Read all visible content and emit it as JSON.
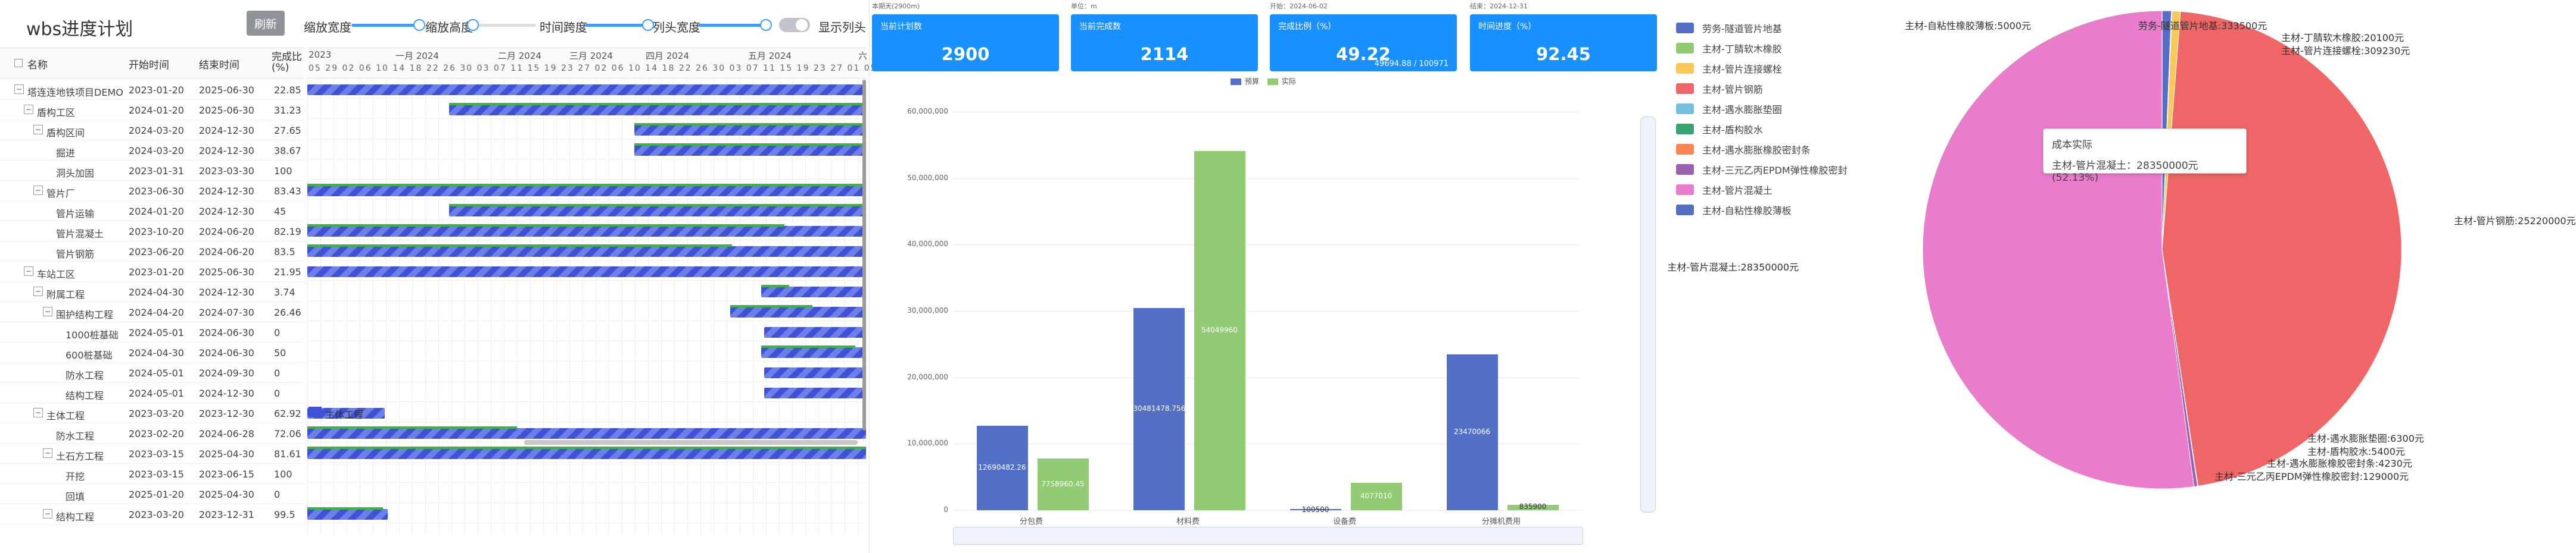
{
  "wbs": {
    "title": "wbs进度计划",
    "refresh_label": "刷新",
    "controls": [
      "缩放宽度",
      "缩放高度",
      "时间跨度",
      "列头宽度",
      "显示列头"
    ],
    "columns": [
      "名称",
      "开始时间",
      "结束时间",
      "完成比(%)"
    ],
    "rows": [
      {
        "name": "塔连连地铁项目DEMO",
        "start": "2023-01-20",
        "end": "2025-06-30",
        "pct": "22.85"
      },
      {
        "name": "盾构工区",
        "start": "2024-01-20",
        "end": "2025-06-30",
        "pct": "31.23"
      },
      {
        "name": "盾构区间",
        "start": "2024-03-20",
        "end": "2024-12-30",
        "pct": "27.65"
      },
      {
        "name": "掘进",
        "start": "2024-03-20",
        "end": "2024-12-30",
        "pct": "38.67"
      },
      {
        "name": "洞头加固",
        "start": "2023-01-31",
        "end": "2023-03-30",
        "pct": "100"
      },
      {
        "name": "管片厂",
        "start": "2023-06-30",
        "end": "2024-12-30",
        "pct": "83.43"
      },
      {
        "name": "管片运输",
        "start": "2024-01-20",
        "end": "2024-12-30",
        "pct": "45"
      },
      {
        "name": "管片混凝土",
        "start": "2023-10-20",
        "end": "2024-06-20",
        "pct": "82.19"
      },
      {
        "name": "管片钢筋",
        "start": "2023-06-20",
        "end": "2024-06-20",
        "pct": "83.5"
      },
      {
        "name": "车站工区",
        "start": "2023-01-20",
        "end": "2025-06-30",
        "pct": "21.95"
      },
      {
        "name": "附属工程",
        "start": "2024-04-30",
        "end": "2024-12-30",
        "pct": "3.74"
      },
      {
        "name": "围护结构工程",
        "start": "2024-04-20",
        "end": "2024-07-30",
        "pct": "26.46"
      },
      {
        "name": "1000桩基础",
        "start": "2024-05-01",
        "end": "2024-06-30",
        "pct": "0"
      },
      {
        "name": "600桩基础",
        "start": "2024-04-30",
        "end": "2024-06-30",
        "pct": "50"
      },
      {
        "name": "防水工程",
        "start": "2024-05-01",
        "end": "2024-09-30",
        "pct": "0"
      },
      {
        "name": "结构工程",
        "start": "2024-05-01",
        "end": "2024-12-30",
        "pct": "0"
      },
      {
        "name": "主体工程",
        "start": "2023-03-20",
        "end": "2023-12-30",
        "pct": "62.92"
      },
      {
        "name": "防水工程",
        "start": "2023-02-20",
        "end": "2024-06-28",
        "pct": "72.06"
      },
      {
        "name": "土石方工程",
        "start": "2023-03-15",
        "end": "2025-04-30",
        "pct": "81.61"
      },
      {
        "name": "开挖",
        "start": "2023-03-15",
        "end": "2023-06-15",
        "pct": "100"
      },
      {
        "name": "回填",
        "start": "2025-01-20",
        "end": "2025-04-30",
        "pct": "0"
      },
      {
        "name": "结构工程",
        "start": "2023-03-20",
        "end": "2023-12-31",
        "pct": "99.5"
      }
    ],
    "gantt_header": {
      "months": [
        "2023",
        "一月 2024",
        "二月 2024",
        "三月 2024",
        "四月 2024",
        "五月 2024",
        "六"
      ],
      "days": "05 29 02 06 10 14 18 22 26 30 03 07 11 15 19 23 27 02 06 10 14 18 22 26 30 03 07 11 15 19 23 27 01 05 09 13 17 21 25 29 02",
      "bar_label": "主体工程"
    }
  },
  "kpis": [
    {
      "meta": "本期天(2900m)",
      "label": "当前计划数",
      "value": "2900",
      "sub": ""
    },
    {
      "meta": "单位：m",
      "label": "当前完成数",
      "value": "2114",
      "sub": ""
    },
    {
      "meta": "开始：2024-06-02",
      "label": "完成比例（%）",
      "value": "49.22",
      "sub": "49694.88 / 100971"
    },
    {
      "meta": "结束：2024-12-31",
      "label": "时间进度（%）",
      "value": "92.45",
      "sub": ""
    }
  ],
  "colors": {
    "kpi": "#1890ff",
    "plan": "#5470c6",
    "actual": "#91cc75"
  },
  "chart_data": [
    {
      "type": "bar",
      "legend": [
        "预算",
        "实际"
      ],
      "categories": [
        "分包费",
        "材料费",
        "设备费",
        "分摊机费用"
      ],
      "ylim": [
        0,
        60000000
      ],
      "yticks": [
        "0",
        "10,000,000",
        "20,000,000",
        "30,000,000",
        "40,000,000",
        "50,000,000",
        "60,000,000"
      ],
      "series": [
        {
          "name": "预算",
          "values": [
            12690482.26,
            30481478.7568,
            100500,
            23470066
          ],
          "labels": [
            "12690482.26",
            "30481478.7568",
            "100500",
            "23470066"
          ]
        },
        {
          "name": "实际",
          "values": [
            7758960.45,
            54049960,
            4077010,
            835900
          ],
          "labels": [
            "7758960.45",
            "54049960",
            "4077010",
            "835900"
          ]
        }
      ]
    },
    {
      "type": "pie",
      "legend": [
        "劳务-隧道管片地基",
        "主材-丁腈软木橡胶",
        "主材-管片连接螺栓",
        "主材-管片钢筋",
        "主材-遇水膨胀垫圈",
        "主材-盾构胶水",
        "主材-遇水膨胀橡胶密封条",
        "主材-三元乙丙EPDM弹性橡胶密封",
        "主材-管片混凝土",
        "主材-自粘性橡胶薄板"
      ],
      "slices": [
        {
          "name": "主材-自粘性橡胶薄板",
          "value": 5000,
          "color": "#5470c6"
        },
        {
          "name": "劳务-隧道管片地基",
          "value": 333500,
          "color": "#5470c6"
        },
        {
          "name": "主材-丁腈软木橡胶",
          "value": 20100,
          "color": "#91cc75"
        },
        {
          "name": "主材-管片连接螺栓",
          "value": 309230,
          "color": "#fac858"
        },
        {
          "name": "主材-管片钢筋",
          "value": 25220000,
          "color": "#ee6666"
        },
        {
          "name": "主材-遇水膨胀垫圈",
          "value": 6300,
          "color": "#73c0de"
        },
        {
          "name": "主材-盾构胶水",
          "value": 5400,
          "color": "#3ba272"
        },
        {
          "name": "主材-遇水膨胀橡胶密封条",
          "value": 4230,
          "color": "#fc8452"
        },
        {
          "name": "主材-三元乙丙EPDM弹性橡胶密封",
          "value": 129000,
          "color": "#9a60b4"
        },
        {
          "name": "主材-管片混凝土",
          "value": 28350000,
          "color": "#ea7ccc"
        }
      ],
      "slice_labels": [
        "主材-自粘性橡胶薄板:5000元",
        "劳务-隧道管片地基:333500元",
        "主材-丁腈软木橡胶:20100元",
        "主材-管片连接螺栓:309230元",
        "主材-管片钢筋:25220000元",
        "主材-遇水膨胀垫圈:6300元",
        "主材-盾构胶水:5400元",
        "主材-遇水膨胀橡胶密封条:4230元",
        "主材-三元乙丙EPDM弹性橡胶密封:129000元",
        "主材-管片混凝土:28350000元"
      ],
      "tooltip": {
        "title": "成本实际",
        "body": "主材-管片混凝土：28350000元 (52.13%)"
      }
    }
  ]
}
